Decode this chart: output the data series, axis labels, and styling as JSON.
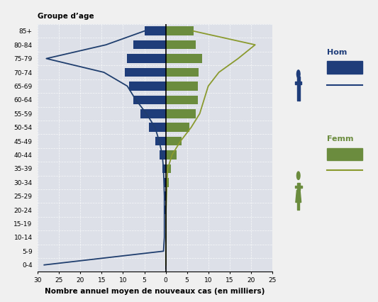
{
  "age_groups": [
    "0-4",
    "5-9",
    "10-14",
    "15-19",
    "20-24",
    "25-29",
    "30-34",
    "35-39",
    "40-44",
    "45-49",
    "50-54",
    "55-59",
    "60-64",
    "65-69",
    "70-74",
    "75-79",
    "80-84",
    "85+"
  ],
  "male_bars": [
    0.05,
    0.05,
    0.1,
    0.15,
    0.2,
    0.3,
    0.5,
    0.8,
    1.5,
    2.5,
    4.0,
    6.0,
    7.5,
    8.5,
    9.5,
    9.0,
    7.5,
    5.0
  ],
  "female_bars": [
    0.05,
    0.05,
    0.1,
    0.15,
    0.2,
    0.3,
    0.7,
    1.2,
    2.5,
    3.8,
    5.5,
    7.0,
    7.5,
    7.5,
    7.8,
    8.5,
    7.0,
    6.5
  ],
  "male_line_x": [
    28.5,
    0.5,
    0.3,
    0.3,
    0.3,
    0.3,
    0.4,
    0.5,
    0.8,
    1.5,
    2.5,
    4.5,
    7.0,
    9.0,
    14.5,
    28.0,
    14.0,
    5.0
  ],
  "female_line_x": [
    0.05,
    0.05,
    0.1,
    0.1,
    0.1,
    0.2,
    0.3,
    0.5,
    1.5,
    3.5,
    6.0,
    8.0,
    9.0,
    10.0,
    12.5,
    17.0,
    21.0,
    6.5
  ],
  "male_bar_color": "#1f3d7a",
  "female_bar_color": "#6b8c3e",
  "male_line_color": "#1f3e6e",
  "female_line_color": "#8a9a2e",
  "background_color": "#dde0e8",
  "grid_line_color": "#ffffff",
  "title": "Groupe d’age",
  "xlabel": "Nombre annuel moyen de nouveaux cas (en milliers)",
  "xlim_left": -30,
  "xlim_right": 25,
  "xticks": [
    -30,
    -25,
    -20,
    -15,
    -10,
    -5,
    0,
    5,
    10,
    15,
    20,
    25
  ],
  "xtick_labels": [
    "30",
    "25",
    "20",
    "15",
    "10",
    "5",
    "0",
    "5",
    "10",
    "15",
    "20",
    "25"
  ],
  "male_icon_color": "#1f3d7a",
  "female_icon_color": "#6b8c3e",
  "legend_male_text": "Hom",
  "legend_female_text": "Femm"
}
